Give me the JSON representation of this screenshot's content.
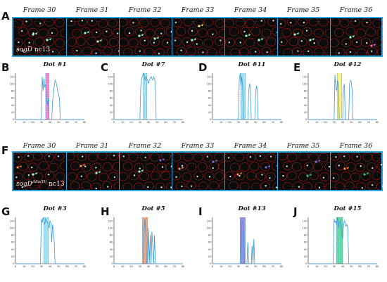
{
  "panel_letters": {
    "A": "A",
    "B": "B",
    "C": "C",
    "D": "D",
    "E": "E",
    "F": "F",
    "G": "G",
    "H": "H",
    "I": "I",
    "J": "J"
  },
  "frames": [
    "Frame 30",
    "Frame 31",
    "Frame 32",
    "Frame 33",
    "Frame 34",
    "Frame 35",
    "Frame 36"
  ],
  "strip_top": {
    "genotype": "sogD",
    "stage": "nc13"
  },
  "strip_bottom": {
    "genotype": "sogD",
    "superscript": "ΔSu(H)",
    "stage": "nc13"
  },
  "colors": {
    "border": "#29a9e1",
    "nuclei": "#e02222",
    "line": "#3a9ad9",
    "pink": "#ee66c8",
    "cyan": "#7fd6ec",
    "yellow": "#f4f06a",
    "orange": "#f08a50",
    "purple": "#7a6ad8",
    "green": "#2ecc8a"
  },
  "plots": [
    {
      "letter": "B",
      "title": "Dot #1",
      "shade": "#ee66c8",
      "span": [
        35,
        39
      ],
      "y": [
        0,
        0,
        0,
        0,
        0,
        0,
        0,
        0,
        0,
        0,
        0,
        0,
        0,
        0,
        0,
        0,
        0,
        0,
        0,
        0,
        0,
        0,
        0,
        0,
        0,
        0,
        0,
        0,
        0,
        0,
        0,
        120,
        80,
        115,
        90,
        100,
        60,
        40,
        60,
        0,
        0,
        0,
        0,
        50,
        70,
        95,
        110,
        105,
        95,
        80,
        70,
        60,
        0,
        0,
        0,
        0,
        0,
        0,
        0,
        0,
        0,
        0,
        0,
        0,
        0,
        0,
        0,
        0,
        0,
        0,
        0,
        0,
        0,
        0,
        0,
        0,
        0,
        0,
        0,
        0,
        0
      ]
    },
    {
      "letter": "C",
      "title": "Dot #7",
      "shade": "#7fd6ec",
      "span": [
        34,
        38
      ],
      "y": [
        0,
        0,
        0,
        0,
        0,
        0,
        0,
        0,
        0,
        0,
        0,
        0,
        0,
        0,
        0,
        0,
        0,
        0,
        0,
        0,
        0,
        0,
        0,
        0,
        0,
        0,
        0,
        0,
        0,
        0,
        0,
        90,
        115,
        120,
        130,
        125,
        110,
        120,
        115,
        110,
        100,
        110,
        115,
        120,
        115,
        110,
        120,
        115,
        100,
        0,
        0,
        0,
        0,
        0,
        0,
        0,
        0,
        0,
        0,
        0,
        0,
        0,
        0,
        0,
        0,
        0,
        0,
        0,
        0,
        0,
        0,
        0,
        0,
        0,
        0,
        0,
        0,
        0,
        0,
        0,
        0
      ]
    },
    {
      "letter": "D",
      "title": "Dot #11",
      "shade": "#7fd6ec",
      "span": [
        33,
        38
      ],
      "y": [
        0,
        0,
        0,
        0,
        0,
        0,
        0,
        0,
        0,
        0,
        0,
        0,
        0,
        0,
        0,
        0,
        0,
        0,
        0,
        0,
        0,
        0,
        0,
        0,
        0,
        0,
        0,
        0,
        0,
        0,
        0,
        110,
        130,
        95,
        120,
        90,
        0,
        0,
        0,
        0,
        0,
        0,
        80,
        100,
        90,
        0,
        0,
        0,
        0,
        0,
        70,
        95,
        80,
        0,
        0,
        0,
        0,
        0,
        0,
        0,
        0,
        0,
        0,
        0,
        0,
        0,
        0,
        0,
        0,
        0,
        0,
        0,
        0,
        0,
        0,
        0,
        0,
        0,
        0,
        0,
        0
      ]
    },
    {
      "letter": "E",
      "title": "Dot #12",
      "shade": "#f4f06a",
      "span": [
        34,
        39
      ],
      "y": [
        0,
        0,
        0,
        0,
        0,
        0,
        0,
        0,
        0,
        0,
        0,
        0,
        0,
        0,
        0,
        0,
        0,
        0,
        0,
        0,
        0,
        0,
        0,
        0,
        0,
        0,
        0,
        0,
        0,
        0,
        0,
        125,
        90,
        80,
        110,
        100,
        0,
        0,
        0,
        0,
        0,
        90,
        100,
        0,
        0,
        0,
        0,
        0,
        100,
        110,
        105,
        80,
        0,
        0,
        0,
        0,
        0,
        0,
        0,
        0,
        0,
        0,
        0,
        0,
        0,
        0,
        0,
        0,
        0,
        0,
        0,
        0,
        0,
        0,
        0,
        0,
        0,
        0,
        0,
        0,
        0
      ]
    },
    {
      "letter": "G",
      "title": "Dot #3",
      "shade": "#7fd6ec",
      "span": [
        33,
        38
      ],
      "y": [
        0,
        0,
        0,
        0,
        0,
        0,
        0,
        0,
        0,
        0,
        0,
        0,
        0,
        0,
        0,
        0,
        0,
        0,
        0,
        0,
        0,
        0,
        0,
        0,
        0,
        0,
        0,
        0,
        0,
        0,
        125,
        115,
        130,
        120,
        110,
        125,
        120,
        115,
        110,
        100,
        120,
        115,
        60,
        110,
        95,
        60,
        0,
        0,
        0,
        0,
        0,
        0,
        0,
        0,
        0,
        0,
        0,
        0,
        0,
        0,
        0,
        0,
        0,
        0,
        0,
        0,
        0,
        0,
        0,
        0,
        0,
        0,
        0,
        0,
        0,
        0,
        0,
        0,
        0,
        0,
        0
      ]
    },
    {
      "letter": "H",
      "title": "Dot #5",
      "shade": "#f08a50",
      "span": [
        33,
        39
      ],
      "y": [
        0,
        0,
        0,
        0,
        0,
        0,
        0,
        0,
        0,
        0,
        0,
        0,
        0,
        0,
        0,
        0,
        0,
        0,
        0,
        0,
        0,
        0,
        0,
        0,
        0,
        0,
        0,
        0,
        0,
        0,
        0,
        0,
        0,
        0,
        0,
        100,
        125,
        80,
        0,
        0,
        100,
        0,
        80,
        0,
        90,
        50,
        0,
        80,
        0,
        0,
        0,
        0,
        0,
        0,
        0,
        0,
        0,
        0,
        0,
        0,
        0,
        0,
        0,
        0,
        0,
        0,
        0,
        0,
        0,
        0,
        0,
        0,
        0,
        0,
        0,
        0,
        0,
        0,
        0,
        0,
        0
      ]
    },
    {
      "letter": "I",
      "title": "Dot #13",
      "shade": "#7a6ad8",
      "span": [
        32,
        38
      ],
      "y": [
        0,
        0,
        0,
        0,
        0,
        0,
        0,
        0,
        0,
        0,
        0,
        0,
        0,
        0,
        0,
        0,
        0,
        0,
        0,
        0,
        0,
        0,
        0,
        0,
        0,
        0,
        0,
        0,
        0,
        0,
        0,
        0,
        0,
        0,
        110,
        120,
        100,
        0,
        0,
        0,
        0,
        60,
        0,
        0,
        0,
        0,
        50,
        0,
        70,
        0,
        0,
        0,
        0,
        0,
        0,
        0,
        0,
        0,
        0,
        0,
        0,
        0,
        0,
        0,
        0,
        0,
        0,
        0,
        0,
        0,
        0,
        0,
        0,
        0,
        0,
        0,
        0,
        0,
        0,
        0,
        0
      ]
    },
    {
      "letter": "J",
      "title": "Dot #15",
      "shade": "#2ecc8a",
      "span": [
        33,
        40
      ],
      "y": [
        0,
        0,
        0,
        0,
        0,
        0,
        0,
        0,
        0,
        0,
        0,
        0,
        0,
        0,
        0,
        0,
        0,
        0,
        0,
        0,
        0,
        0,
        0,
        0,
        0,
        0,
        0,
        0,
        0,
        0,
        125,
        115,
        120,
        110,
        130,
        100,
        115,
        120,
        110,
        80,
        70,
        110,
        120,
        115,
        105,
        110,
        100,
        0,
        0,
        0,
        0,
        0,
        0,
        0,
        0,
        0,
        0,
        0,
        0,
        0,
        0,
        0,
        0,
        0,
        0,
        0,
        0,
        0,
        0,
        0,
        0,
        0,
        0,
        0,
        0,
        0,
        0,
        0,
        0,
        0,
        0
      ]
    }
  ]
}
